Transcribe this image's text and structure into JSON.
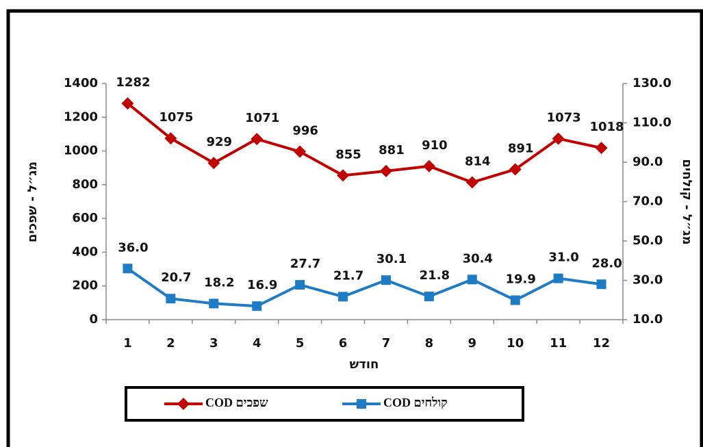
{
  "chart_data": {
    "type": "line",
    "categories": [
      "1",
      "2",
      "3",
      "4",
      "5",
      "6",
      "7",
      "8",
      "9",
      "10",
      "11",
      "12"
    ],
    "x_label": "חודש",
    "y_label": "מג״ל - שפכים",
    "y2_label": "מג״ל - קולחים",
    "ylim": [
      0,
      1400
    ],
    "yticks": [
      0,
      200,
      400,
      600,
      800,
      1000,
      1200,
      1400
    ],
    "y2lim": [
      10,
      130
    ],
    "y2ticks": [
      {
        "value": 10,
        "label": "10.0"
      },
      {
        "value": 30,
        "label": "30.0"
      },
      {
        "value": 50,
        "label": "50.0"
      },
      {
        "value": 70,
        "label": "70.0"
      },
      {
        "value": 90,
        "label": "90.0"
      },
      {
        "value": 110,
        "label": "110.0"
      },
      {
        "value": 130,
        "label": "130.0"
      }
    ],
    "grid": false,
    "series": [
      {
        "name": "COD שפכים",
        "color": "#c00000",
        "marker": "diamond",
        "values": [
          1282,
          1075,
          929,
          1071,
          996,
          855,
          881,
          910,
          814,
          891,
          1073,
          1018
        ]
      },
      {
        "name": "COD קולחים",
        "color": "#1f7bc4",
        "marker": "square",
        "axis": "y2",
        "values": [
          36.0,
          20.7,
          18.2,
          16.9,
          27.7,
          21.7,
          30.1,
          21.8,
          30.4,
          19.9,
          31.0,
          28.0
        ],
        "value_labels": [
          "36.0",
          "20.7",
          "18.2",
          "16.9",
          "27.7",
          "21.7",
          "30.1",
          "21.8",
          "30.4",
          "19.9",
          "31.0",
          "28.0"
        ]
      }
    ]
  }
}
